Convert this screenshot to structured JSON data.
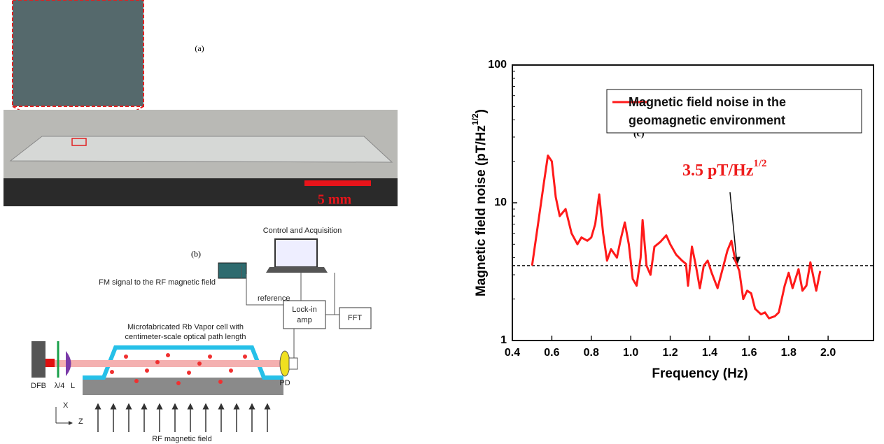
{
  "panel_a": {
    "label": "(a)",
    "scale_bar": "5 mm"
  },
  "panel_b": {
    "label": "(b)",
    "control": "Control and Acquisition",
    "fm_signal": "FM signal to the RF magnetic field",
    "reference": "reference",
    "lockin": [
      "Lock-in",
      "amp"
    ],
    "fft": "FFT",
    "cell": [
      "Microfabricated Rb Vapor cell with",
      "centimeter-scale optical path length"
    ],
    "dfb": "DFB",
    "waveplate": "λ/4",
    "lens": "L",
    "pd": "PD",
    "axis_x": "X",
    "axis_z": "Z",
    "rf_field": "RF magnetic field"
  },
  "chart_data": {
    "type": "line",
    "panel_label": "(c)",
    "x_label": "Frequency (Hz)",
    "y_label": {
      "text": "Magnetic field noise (pT/Hz",
      "sup": "1/2",
      "end": ")"
    },
    "annotation": {
      "text": "3.5 pT/Hz",
      "sup": "1/2"
    },
    "reference_line": 3.5,
    "log_y": true,
    "xlim": [
      0.4,
      2.23
    ],
    "ylim": [
      1,
      100
    ],
    "xticks": [
      0.4,
      0.6,
      0.8,
      {
        "value": 1,
        "label": "1.0"
      },
      1.2,
      1.4,
      1.6,
      1.8,
      {
        "value": 2,
        "label": "2.0"
      }
    ],
    "yticks": [
      1,
      10,
      100
    ],
    "x": [
      0.5,
      0.53,
      0.56,
      0.58,
      0.6,
      0.62,
      0.64,
      0.67,
      0.7,
      0.73,
      0.75,
      0.78,
      0.8,
      0.82,
      0.84,
      0.86,
      0.88,
      0.9,
      0.93,
      0.95,
      0.97,
      0.99,
      1.01,
      1.03,
      1.05,
      1.06,
      1.08,
      1.1,
      1.12,
      1.15,
      1.18,
      1.2,
      1.23,
      1.26,
      1.28,
      1.29,
      1.31,
      1.33,
      1.35,
      1.37,
      1.39,
      1.41,
      1.44,
      1.47,
      1.49,
      1.51,
      1.53,
      1.55,
      1.57,
      1.59,
      1.61,
      1.63,
      1.66,
      1.68,
      1.7,
      1.73,
      1.75,
      1.78,
      1.8,
      1.82,
      1.85,
      1.87,
      1.89,
      1.91,
      1.94,
      1.96
    ],
    "series": [
      {
        "name": "Magnetic field noise in the geomagnetic environment",
        "color": "#ff1a1a",
        "values": [
          3.5,
          7,
          14,
          22,
          20,
          11,
          8,
          9,
          6,
          5,
          5.6,
          5.3,
          5.6,
          7,
          11.5,
          6,
          3.8,
          4.6,
          4,
          5.5,
          7.2,
          5,
          2.8,
          2.5,
          4,
          7.5,
          3.5,
          3,
          4.8,
          5.2,
          5.8,
          5,
          4.2,
          3.8,
          3.6,
          2.5,
          4.8,
          3.5,
          2.4,
          3.5,
          3.8,
          3.1,
          2.4,
          3.5,
          4.5,
          5.3,
          3.8,
          3.2,
          2,
          2.3,
          2.2,
          1.7,
          1.55,
          1.6,
          1.45,
          1.5,
          1.6,
          2.5,
          3.1,
          2.4,
          3.3,
          2.3,
          2.5,
          3.7,
          2.3,
          3.2
        ]
      }
    ]
  }
}
